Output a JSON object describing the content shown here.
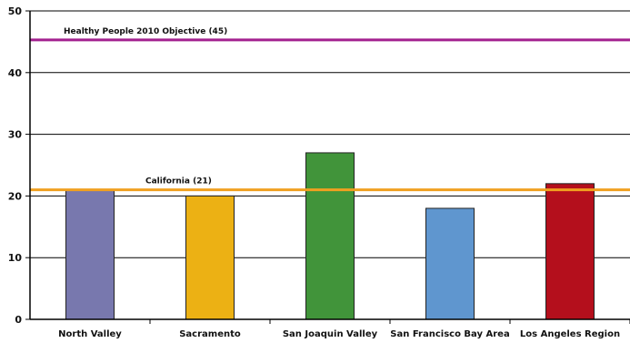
{
  "chart_data": {
    "type": "bar",
    "title": "",
    "xlabel": "",
    "ylabel": "",
    "ylim": [
      0,
      50
    ],
    "yticks": [
      0,
      10,
      20,
      30,
      40,
      50
    ],
    "grid": true,
    "categories": [
      "North Valley",
      "Sacramento",
      "San Joaquin Valley",
      "San Francisco Bay Area",
      "Los Angeles Region"
    ],
    "values": [
      21,
      20,
      27,
      18,
      22
    ],
    "bar_colors": [
      "#7878ae",
      "#ecb114",
      "#41943a",
      "#5f96cf",
      "#b40f1c"
    ],
    "reference_lines": [
      {
        "label": "Healthy People 2010 Objective (45)",
        "value": 45.3,
        "color": "#a3218f"
      },
      {
        "label": "California (21)",
        "value": 21,
        "color": "#f0a020"
      }
    ]
  }
}
